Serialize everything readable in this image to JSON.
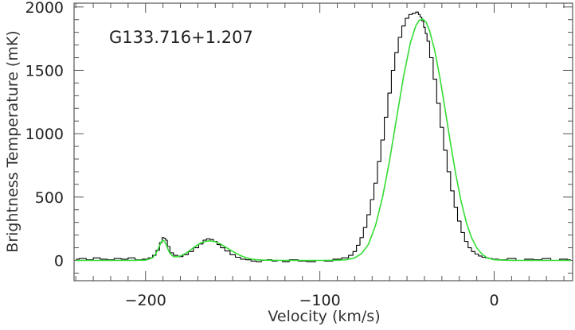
{
  "chart_data": {
    "type": "line",
    "title": "",
    "annotation": "G133.716+1.207",
    "xlabel": "Velocity (km/s)",
    "ylabel": "Brightness Temperature (mK)",
    "xlim": [
      -241,
      45
    ],
    "ylim": [
      -160,
      2030
    ],
    "x_ticks": [
      -200,
      -100,
      0
    ],
    "x_tick_labels": [
      "−200",
      "−100",
      "0"
    ],
    "y_ticks": [
      0,
      500,
      1000,
      1500,
      2000
    ],
    "y_tick_labels": [
      "0",
      "500",
      "1000",
      "1500",
      "2000"
    ],
    "grid": false,
    "series": [
      {
        "style": "step",
        "color": "#000000",
        "x": [
          -240,
          -236,
          -232,
          -228,
          -224,
          -220,
          -216,
          -212,
          -208,
          -204,
          -200,
          -197,
          -195,
          -193,
          -191,
          -190,
          -189,
          -188,
          -187,
          -185,
          -183,
          -180,
          -177,
          -174,
          -171,
          -168,
          -166,
          -164,
          -162,
          -160,
          -158,
          -156,
          -153,
          -150,
          -147,
          -144,
          -141,
          -138,
          -135,
          -132,
          -129,
          -126,
          -123,
          -120,
          -115,
          -110,
          -105,
          -100,
          -95,
          -90,
          -85,
          -82,
          -80,
          -78,
          -76,
          -74,
          -72,
          -70,
          -68,
          -66,
          -64,
          -62,
          -60,
          -58,
          -56,
          -54,
          -52,
          -50,
          -48,
          -46,
          -44,
          -43,
          -42,
          -41,
          -40,
          -39,
          -38,
          -36,
          -34,
          -32,
          -30,
          -28,
          -26,
          -24,
          -22,
          -20,
          -18,
          -16,
          -14,
          -12,
          -10,
          -8,
          -6,
          -4,
          -2,
          0,
          5,
          10,
          15,
          20,
          25,
          30,
          35,
          40,
          44
        ],
        "y": [
          10,
          15,
          5,
          20,
          10,
          5,
          15,
          10,
          20,
          5,
          10,
          20,
          40,
          80,
          140,
          180,
          175,
          160,
          110,
          60,
          40,
          30,
          45,
          70,
          100,
          130,
          160,
          170,
          165,
          150,
          125,
          100,
          75,
          45,
          25,
          10,
          5,
          -5,
          -10,
          0,
          5,
          -5,
          0,
          -10,
          5,
          -5,
          -10,
          0,
          -5,
          10,
          20,
          40,
          70,
          120,
          180,
          260,
          360,
          480,
          610,
          780,
          950,
          1130,
          1320,
          1500,
          1640,
          1760,
          1850,
          1910,
          1940,
          1950,
          1960,
          1940,
          1920,
          1890,
          1840,
          1790,
          1730,
          1600,
          1430,
          1240,
          1050,
          870,
          700,
          550,
          420,
          310,
          220,
          150,
          100,
          70,
          50,
          35,
          25,
          20,
          15,
          10,
          5,
          15,
          0,
          10,
          5,
          15,
          0,
          10,
          5
        ]
      },
      {
        "style": "line",
        "color": "#33dd33",
        "x": [
          -240,
          -230,
          -220,
          -210,
          -200,
          -196,
          -194,
          -192,
          -191,
          -190,
          -189,
          -188,
          -187,
          -186,
          -184,
          -182,
          -180,
          -177,
          -174,
          -171,
          -168,
          -165,
          -163,
          -160,
          -157,
          -154,
          -151,
          -148,
          -145,
          -142,
          -139,
          -136,
          -130,
          -120,
          -110,
          -100,
          -90,
          -85,
          -80,
          -76,
          -72,
          -68,
          -64,
          -60,
          -56,
          -52,
          -48,
          -45,
          -43,
          -41,
          -39,
          -37,
          -34,
          -31,
          -28,
          -25,
          -22,
          -19,
          -16,
          -13,
          -10,
          -7,
          -4,
          0,
          10,
          20,
          30,
          44
        ],
        "y": [
          0,
          0,
          0,
          0,
          2,
          20,
          55,
          115,
          145,
          160,
          150,
          120,
          85,
          55,
          30,
          28,
          35,
          55,
          85,
          115,
          140,
          152,
          155,
          148,
          130,
          105,
          80,
          55,
          35,
          20,
          10,
          5,
          1,
          0,
          0,
          0,
          1,
          5,
          20,
          55,
          130,
          280,
          500,
          790,
          1120,
          1450,
          1720,
          1850,
          1895,
          1905,
          1880,
          1810,
          1650,
          1430,
          1180,
          920,
          680,
          470,
          300,
          180,
          100,
          50,
          20,
          5,
          0,
          0,
          0,
          0
        ]
      }
    ]
  }
}
